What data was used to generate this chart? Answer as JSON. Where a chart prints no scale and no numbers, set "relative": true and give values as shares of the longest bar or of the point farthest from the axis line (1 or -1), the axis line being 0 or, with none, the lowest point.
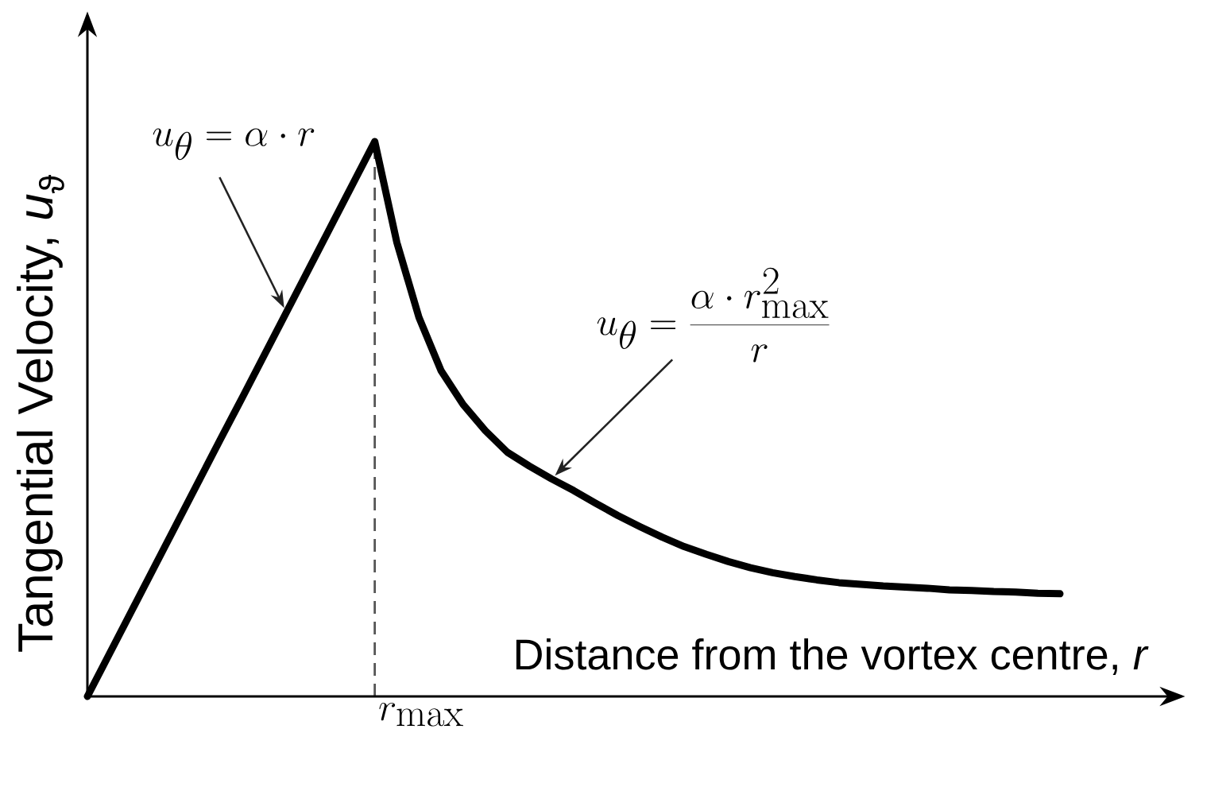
{
  "chart_data": {
    "type": "line",
    "relative": true,
    "xlabel": "Distance from the vortex centre, *r*",
    "ylabel": "Tangential Velocity, *u*$_{ϑ}$",
    "categories": [
      null,
      null,
      null,
      null,
      null,
      null,
      null,
      null,
      null,
      null,
      null,
      null,
      null,
      null,
      null,
      null,
      null,
      null,
      null,
      null,
      null,
      null,
      null,
      null,
      null,
      null,
      null,
      null,
      null,
      null,
      null,
      null,
      null,
      null,
      null,
      null,
      null,
      null,
      null,
      null,
      null,
      null,
      null,
      null,
      null
    ],
    "series": [
      {
        "color": "#000000",
        "values": [
          0,
          0.077,
          0.154,
          0.231,
          0.308,
          0.385,
          0.462,
          0.538,
          0.615,
          0.692,
          0.769,
          0.846,
          0.923,
          1,
          0.818,
          0.683,
          0.587,
          0.526,
          0.479,
          0.44,
          0.415,
          0.392,
          0.371,
          0.348,
          0.326,
          0.306,
          0.287,
          0.27,
          0.256,
          0.243,
          0.232,
          0.223,
          0.216,
          0.21,
          0.205,
          0.202,
          0.199,
          0.197,
          0.195,
          0.192,
          0.191,
          0.189,
          0.188,
          0.186,
          0.185
        ]
      }
    ],
    "marker": "none",
    "annotations": [
      "u_\\theta = \\alpha \\cdot r",
      "u_\\theta = \\frac{\\alpha \\cdot r_\\mathrm{max}^2}{r}",
      "r_\\mathrm{max}"
    ]
  }
}
